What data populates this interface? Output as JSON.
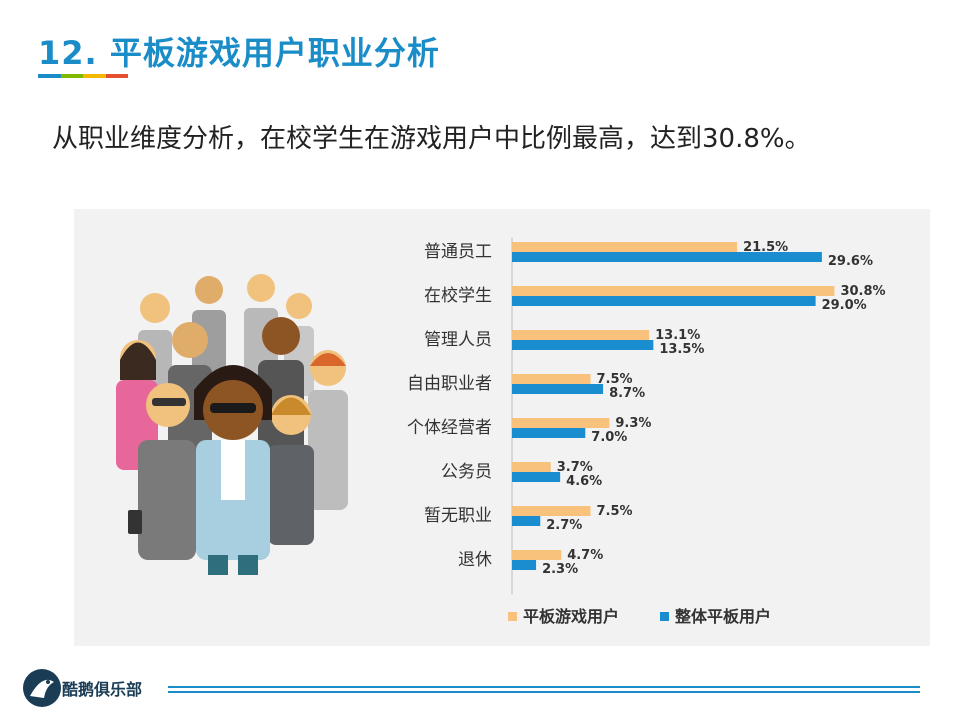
{
  "header": {
    "title": "12. 平板游戏用户职业分析",
    "rule_colors": [
      "#1a8cc8",
      "#7fba00",
      "#f5b800",
      "#e4502f"
    ]
  },
  "subtitle": "从职业维度分析，在校学生在游戏用户中比例最高，达到30.8%。",
  "chart_data": {
    "type": "bar",
    "orientation": "horizontal",
    "categories": [
      "普通员工",
      "在校学生",
      "管理人员",
      "自由职业者",
      "个体经营者",
      "公务员",
      "暂无职业",
      "退休"
    ],
    "series": [
      {
        "name": "平板游戏用户",
        "color": "#f9c27c",
        "values": [
          21.5,
          30.8,
          13.1,
          7.5,
          9.3,
          3.7,
          7.5,
          4.7
        ],
        "labels": [
          "21.5%",
          "30.8%",
          "13.1%",
          "7.5%",
          "9.3%",
          "3.7%",
          "7.5%",
          "4.7%"
        ]
      },
      {
        "name": "整体平板用户",
        "color": "#1a8cd0",
        "values": [
          29.6,
          29.0,
          13.5,
          8.7,
          7.0,
          4.6,
          2.7,
          2.3
        ],
        "labels": [
          "29.6%",
          "29.0%",
          "13.5%",
          "8.7%",
          "7.0%",
          "4.6%",
          "2.7%",
          "2.3%"
        ]
      }
    ],
    "xlim": [
      0,
      32
    ],
    "legend": "bottom",
    "grid": false
  },
  "footer": {
    "brand": "酷鹅俱乐部",
    "logo_icon": "penguin-icon"
  }
}
